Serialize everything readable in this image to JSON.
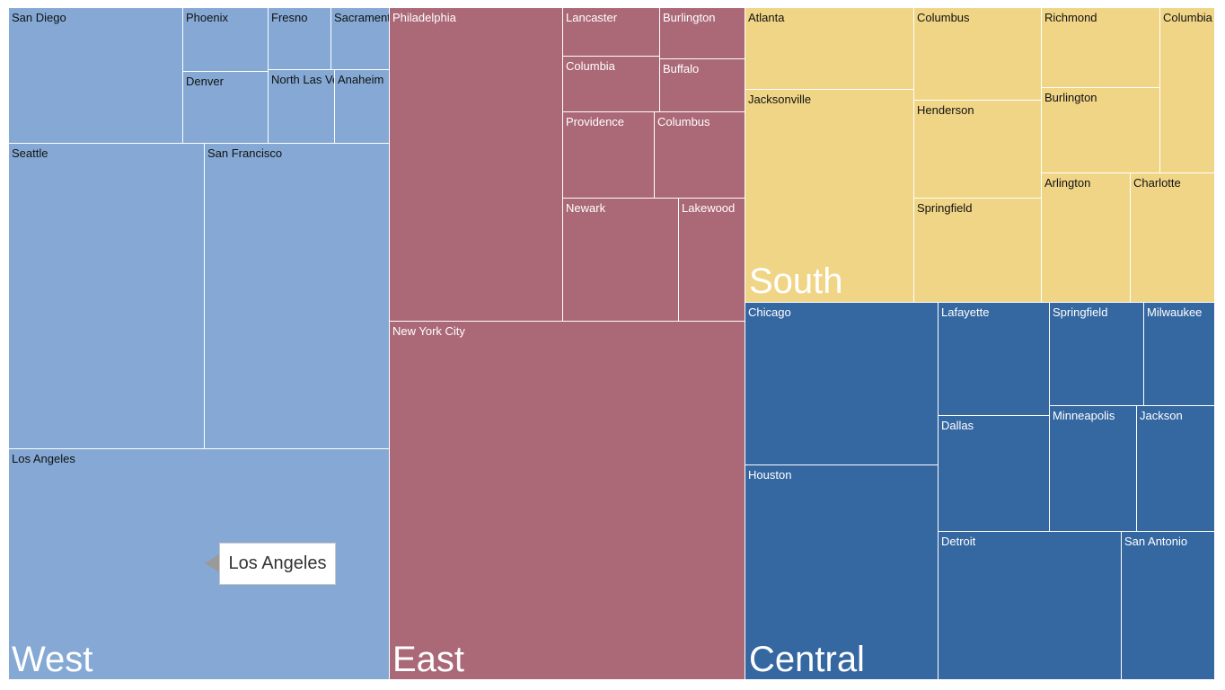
{
  "chart_data": {
    "type": "treemap",
    "colors": {
      "West": "#85a9d4",
      "East": "#ab6877",
      "South": "#f0d587",
      "Central": "#3567a1"
    },
    "label_colors": {
      "West": "#111111",
      "East": "#ffffff",
      "South": "#111111",
      "Central": "#ffffff"
    },
    "groups": [
      {
        "name": "West",
        "children": [
          {
            "name": "San Diego"
          },
          {
            "name": "Phoenix"
          },
          {
            "name": "Fresno"
          },
          {
            "name": "Sacramento"
          },
          {
            "name": "Denver"
          },
          {
            "name": "North Las Vegas"
          },
          {
            "name": "Anaheim"
          },
          {
            "name": "Seattle"
          },
          {
            "name": "San Francisco"
          },
          {
            "name": "Los Angeles"
          }
        ]
      },
      {
        "name": "East",
        "children": [
          {
            "name": "Philadelphia"
          },
          {
            "name": "Lancaster"
          },
          {
            "name": "Burlington"
          },
          {
            "name": "Columbia"
          },
          {
            "name": "Buffalo"
          },
          {
            "name": "Providence"
          },
          {
            "name": "Columbus"
          },
          {
            "name": "Newark"
          },
          {
            "name": "Lakewood"
          },
          {
            "name": "New York City"
          }
        ]
      },
      {
        "name": "South",
        "children": [
          {
            "name": "Atlanta"
          },
          {
            "name": "Columbus"
          },
          {
            "name": "Richmond"
          },
          {
            "name": "Columbia"
          },
          {
            "name": "Jacksonville"
          },
          {
            "name": "Henderson"
          },
          {
            "name": "Burlington"
          },
          {
            "name": "Arlington"
          },
          {
            "name": "Charlotte"
          },
          {
            "name": "Springfield"
          }
        ]
      },
      {
        "name": "Central",
        "children": [
          {
            "name": "Chicago"
          },
          {
            "name": "Lafayette"
          },
          {
            "name": "Springfield"
          },
          {
            "name": "Milwaukee"
          },
          {
            "name": "Dallas"
          },
          {
            "name": "Minneapolis"
          },
          {
            "name": "Jackson"
          },
          {
            "name": "Houston"
          },
          {
            "name": "Detroit"
          },
          {
            "name": "San Antonio"
          }
        ]
      }
    ]
  },
  "tooltip": {
    "text": "Los Angeles"
  }
}
